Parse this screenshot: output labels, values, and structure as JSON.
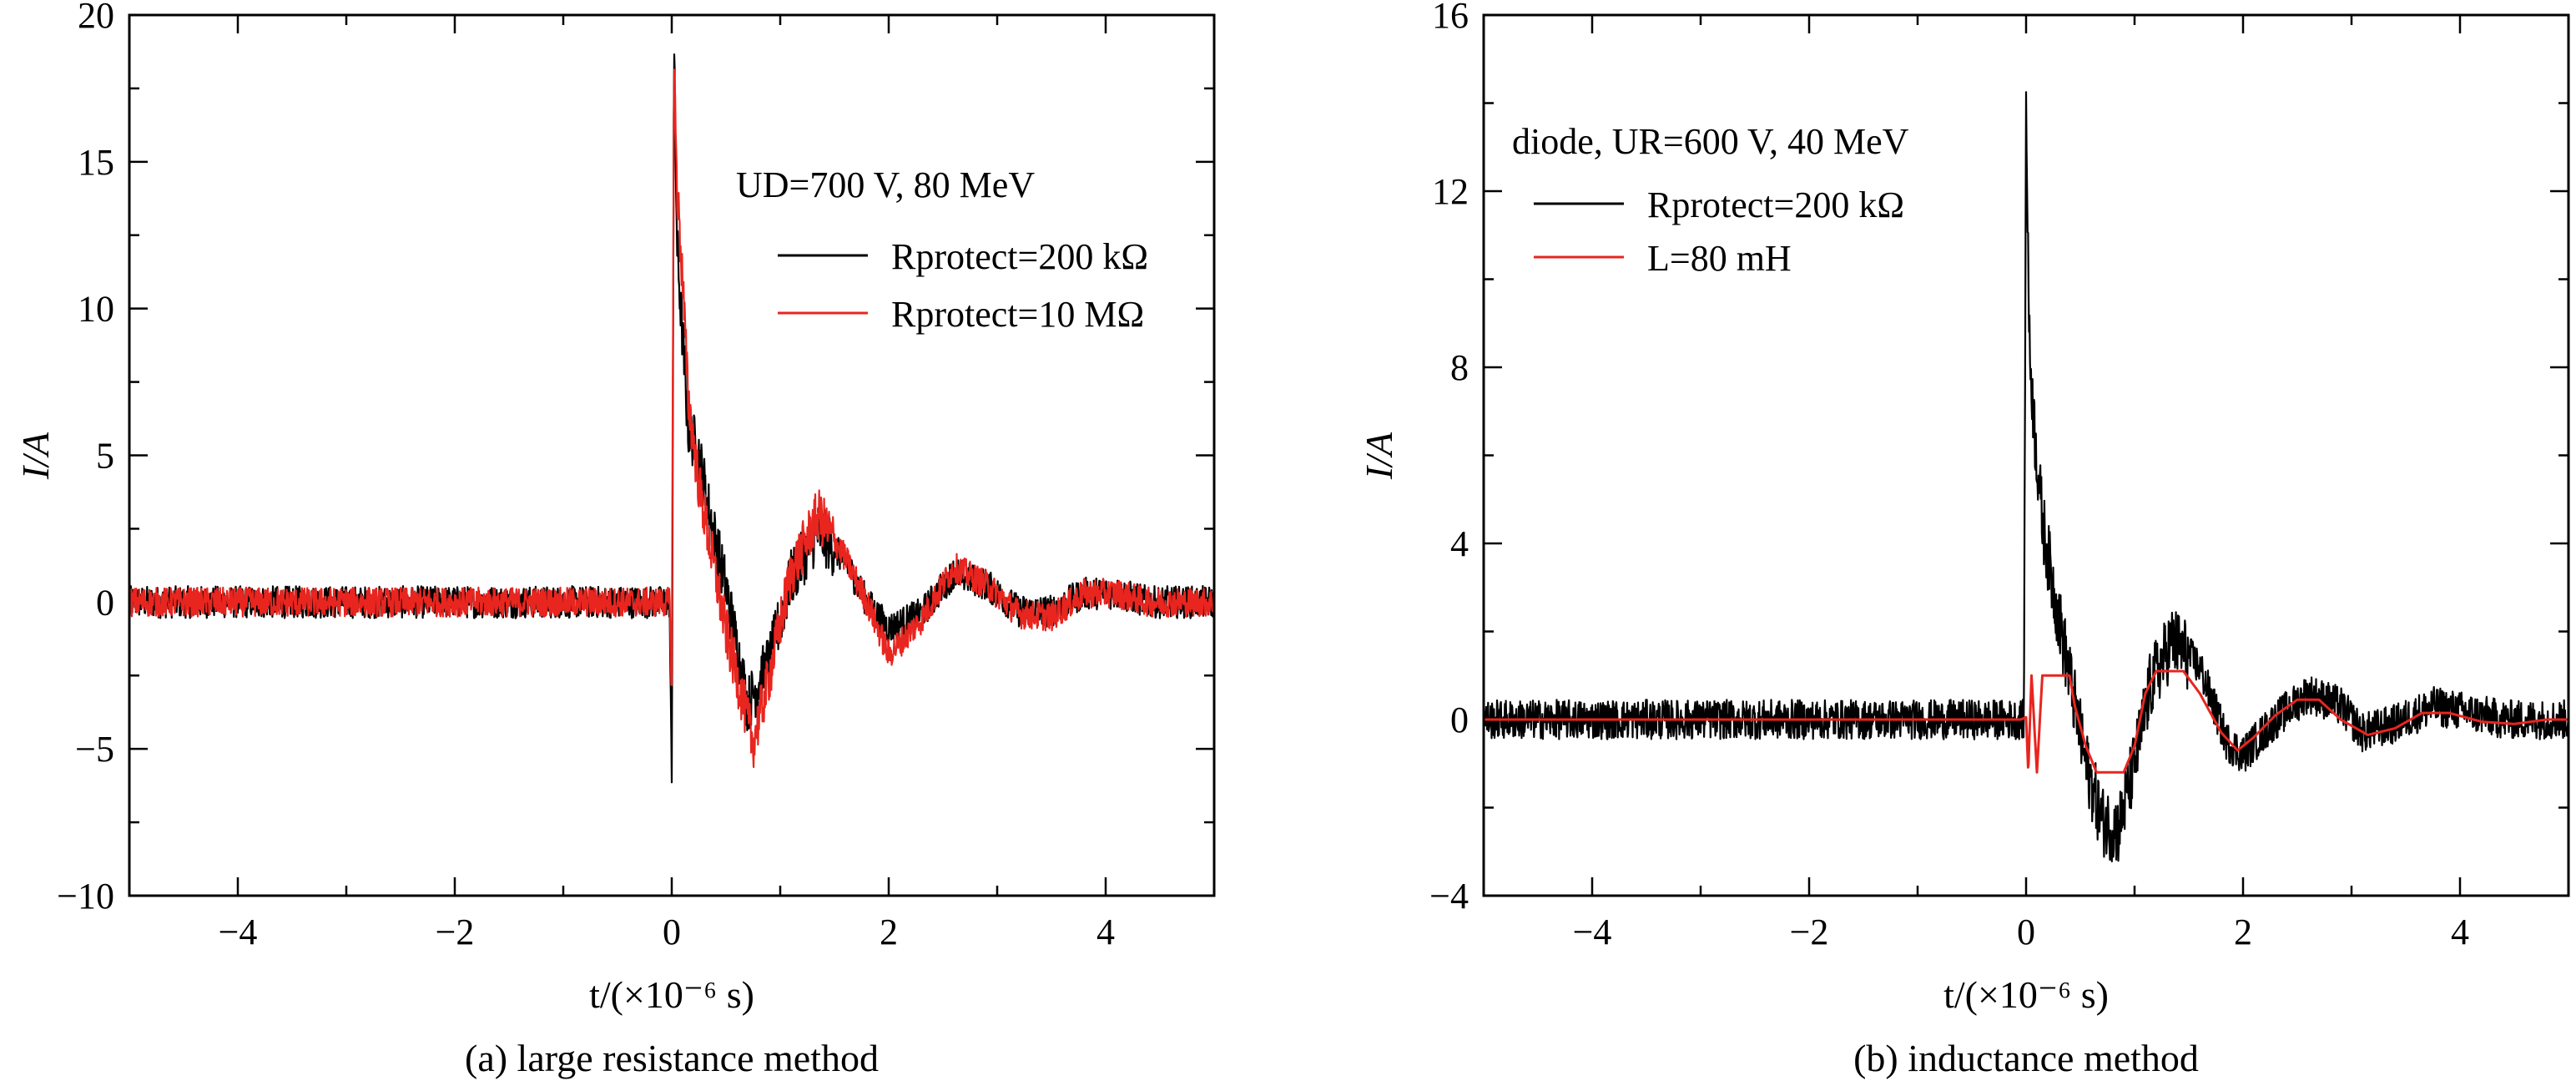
{
  "chart_data": [
    {
      "type": "line",
      "caption": "(a) large resistance method",
      "xlabel": "t/(×10⁻⁶ s)",
      "ylabel": "I/A",
      "xlim": [
        -5,
        5
      ],
      "ylim": [
        -10,
        20
      ],
      "xticks": [
        -4,
        -2,
        0,
        2,
        4
      ],
      "yticks": [
        -10,
        -5,
        0,
        5,
        10,
        15,
        20
      ],
      "legend_title": "UD=700 V, 80 MeV",
      "legend_placement": "top-right",
      "series": [
        {
          "name": "Rprotect=200 kΩ",
          "color": "#000000",
          "noise": 0.55,
          "x": [
            -5,
            -0.02,
            0.0,
            0.02,
            0.05,
            0.1,
            0.15,
            0.25,
            0.35,
            0.5,
            0.7,
            0.9,
            1.1,
            1.35,
            1.6,
            1.8,
            2.0,
            2.3,
            2.6,
            2.9,
            3.2,
            3.5,
            3.8,
            4.1,
            4.4,
            5.0
          ],
          "y": [
            0,
            0,
            -6.2,
            19.0,
            12.0,
            9.0,
            6.0,
            5.0,
            3.0,
            0.5,
            -3.5,
            -2.0,
            0.8,
            2.4,
            1.4,
            0.0,
            -0.9,
            -0.4,
            1.0,
            0.6,
            -0.3,
            -0.3,
            0.3,
            0.3,
            0.0,
            0.0
          ]
        },
        {
          "name": "Rprotect=10 MΩ",
          "color": "#e8251f",
          "noise": 0.5,
          "x": [
            -5,
            -0.02,
            0.0,
            0.02,
            0.05,
            0.1,
            0.15,
            0.25,
            0.35,
            0.5,
            0.75,
            0.9,
            1.1,
            1.35,
            1.6,
            1.8,
            2.0,
            2.3,
            2.6,
            2.9,
            3.2,
            3.5,
            3.8,
            4.1,
            4.4,
            5.0
          ],
          "y": [
            0,
            0,
            -3.0,
            18.5,
            14.0,
            11.0,
            7.0,
            4.0,
            2.0,
            -1.0,
            -4.8,
            -2.5,
            1.0,
            3.0,
            1.5,
            0.0,
            -1.8,
            -0.6,
            1.2,
            0.6,
            -0.4,
            -0.5,
            0.3,
            0.3,
            0.0,
            0.0
          ]
        }
      ]
    },
    {
      "type": "line",
      "caption": "(b) inductance method",
      "xlabel": "t/(×10⁻⁶ s)",
      "ylabel": "I/A",
      "xlim": [
        -5,
        5
      ],
      "ylim": [
        -4,
        16
      ],
      "xticks": [
        -4,
        -2,
        0,
        2,
        4
      ],
      "yticks": [
        -4,
        0,
        4,
        8,
        12,
        16
      ],
      "legend_title": "diode, UR=600 V, 40 MeV",
      "legend_placement": "top-left",
      "series": [
        {
          "name": "Rprotect=200 kΩ",
          "color": "#000000",
          "noise": 0.45,
          "x": [
            -5,
            -0.02,
            0.0,
            0.03,
            0.08,
            0.15,
            0.25,
            0.4,
            0.55,
            0.7,
            0.85,
            1.0,
            1.15,
            1.35,
            1.6,
            1.85,
            2.0,
            2.3,
            2.6,
            2.9,
            3.1,
            3.4,
            3.75,
            4.0,
            4.4,
            5.0
          ],
          "y": [
            0,
            0,
            14.2,
            8.5,
            6.5,
            4.5,
            3.0,
            1.0,
            -1.0,
            -2.3,
            -2.5,
            -1.0,
            0.8,
            1.8,
            1.2,
            -0.5,
            -0.8,
            0.0,
            0.6,
            0.3,
            -0.3,
            -0.1,
            0.3,
            0.2,
            0.0,
            0.0
          ]
        },
        {
          "name": "L=80 mH",
          "color": "#e8251f",
          "noise": 0.0,
          "x": [
            -5,
            -0.05,
            0.0,
            0.02,
            0.05,
            0.1,
            0.15,
            0.2,
            0.25,
            0.4,
            0.45,
            0.55,
            0.65,
            0.75,
            0.9,
            1.0,
            1.1,
            1.2,
            1.3,
            1.45,
            1.6,
            1.8,
            1.95,
            2.1,
            2.3,
            2.5,
            2.7,
            2.9,
            3.15,
            3.4,
            3.65,
            3.9,
            4.2,
            4.5,
            4.8,
            5.0
          ],
          "y": [
            0,
            0,
            0.05,
            -1.2,
            1.0,
            -1.2,
            1.0,
            1.0,
            1.0,
            1.0,
            0.3,
            -0.6,
            -1.2,
            -1.2,
            -1.2,
            -0.6,
            0.6,
            1.1,
            1.1,
            1.1,
            0.6,
            -0.3,
            -0.7,
            -0.4,
            0.1,
            0.45,
            0.45,
            0.0,
            -0.35,
            -0.2,
            0.15,
            0.15,
            -0.05,
            -0.1,
            0.0,
            0.0
          ]
        }
      ]
    }
  ]
}
